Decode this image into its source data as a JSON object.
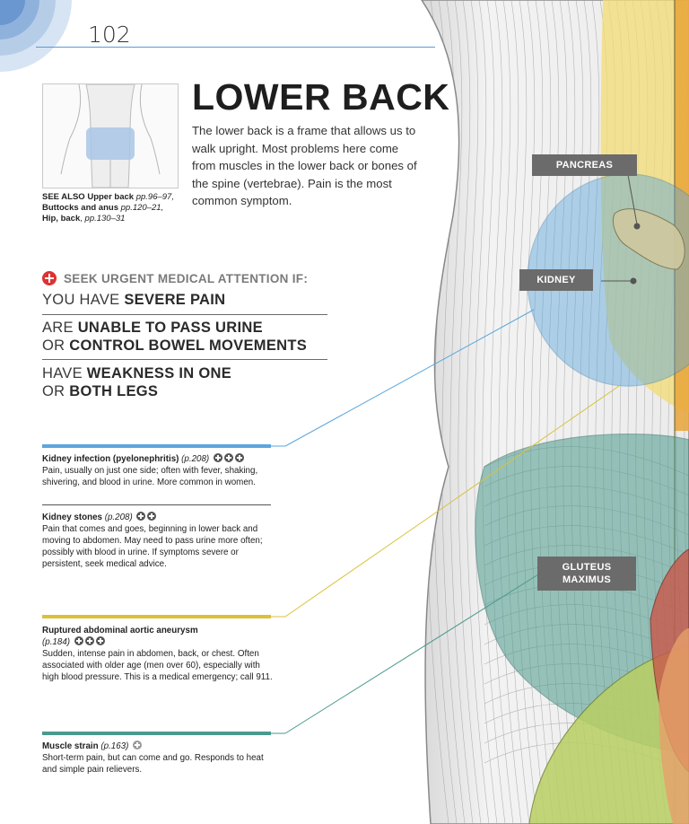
{
  "page": {
    "number": "102"
  },
  "heading": {
    "title": "LOWER BACK",
    "intro": "The lower back is a frame that allows us to walk upright. Most problems here come from muscles in the lower back or bones of the spine (vertebrae). Pain is the most common symptom."
  },
  "see_also": {
    "label": "SEE ALSO",
    "items": [
      {
        "text": "Upper back",
        "pages": "pp.96–97,"
      },
      {
        "text": "Buttocks and anus",
        "pages": "pp.120–21,"
      },
      {
        "text": "Hip, back",
        "pages": "pp.130–31"
      }
    ]
  },
  "urgent": {
    "heading": "SEEK URGENT MEDICAL ATTENTION IF:",
    "items": [
      {
        "lines": [
          {
            "plain": "YOU HAVE ",
            "bold": "SEVERE PAIN"
          }
        ]
      },
      {
        "lines": [
          {
            "plain": "ARE ",
            "bold": "UNABLE TO PASS URINE"
          },
          {
            "plain": "OR ",
            "bold": "CONTROL BOWEL MOVEMENTS"
          }
        ]
      },
      {
        "lines": [
          {
            "plain": "HAVE ",
            "bold": "WEAKNESS IN ONE"
          },
          {
            "plain": "OR ",
            "bold": "BOTH LEGS"
          }
        ]
      }
    ]
  },
  "conditions": [
    {
      "title": "Kidney infection (pyelonephritis)",
      "page": "(p.208)",
      "severity": 3,
      "color": "#5aa6dc",
      "description": "Pain, usually on just one side; often with fever, shaking, shivering, and blood in urine. More common in women."
    },
    {
      "title": "Kidney stones",
      "page": "(p.208)",
      "severity": 2,
      "color": "#5aa6dc",
      "description": "Pain that comes and goes, beginning in lower back and moving to abdomen. May need to pass urine more often; possibly with blood in urine. If symptoms severe or persistent, seek medical advice."
    },
    {
      "title": "Ruptured abdominal aortic aneurysm",
      "page": "(p.184)",
      "severity": 3,
      "color": "#d9c23a",
      "description": "Sudden, intense pain in abdomen, back, or chest. Often associated with older age (men over 60), especially with high blood pressure. This is a medical emergency; call 911."
    },
    {
      "title": "Muscle strain",
      "page": "(p.163)",
      "severity": 1,
      "color": "#4a9a8c",
      "description": "Short-term pain, but can come and go. Responds to heat and simple pain relievers."
    }
  ],
  "anatomy_labels": {
    "pancreas": "PANCREAS",
    "kidney": "KIDNEY",
    "gluteus": "GLUTEUS\nMAXIMUS"
  },
  "colors": {
    "kidney": "#5aa6dc",
    "aorta": "#d9c23a",
    "muscle": "#4a9a8c",
    "label_bg": "#6b6b6b",
    "urgent_red": "#d33333"
  }
}
